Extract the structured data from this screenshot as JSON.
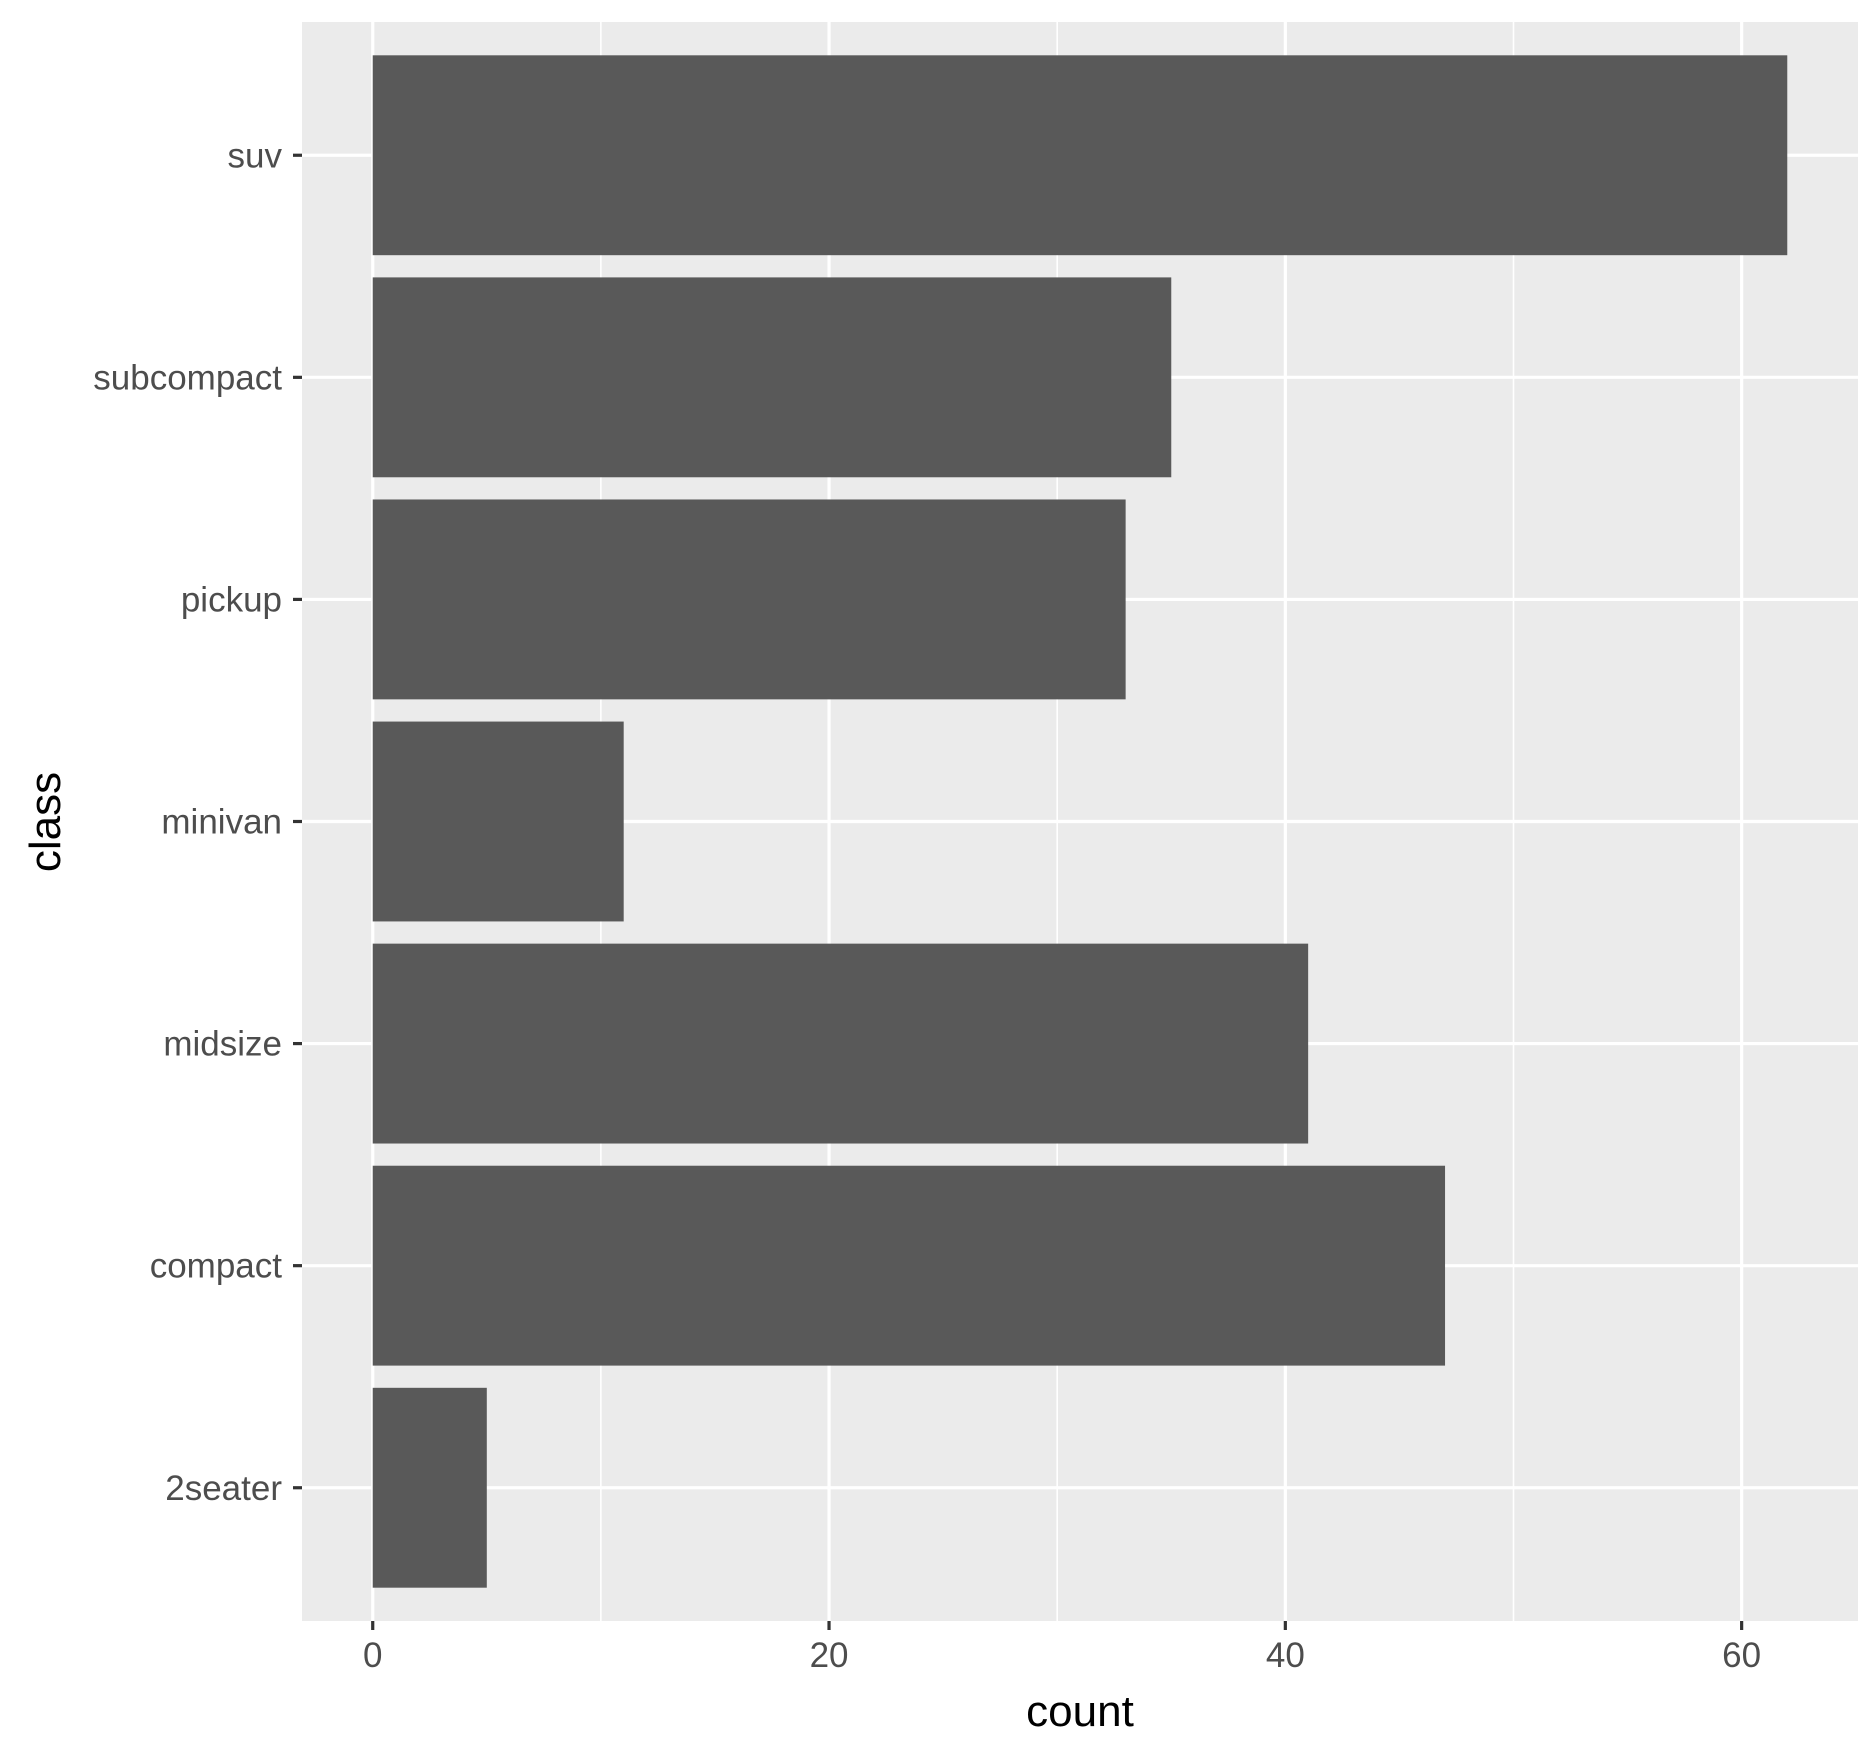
{
  "chart_data": {
    "type": "bar",
    "orientation": "horizontal",
    "categories": [
      "2seater",
      "compact",
      "midsize",
      "minivan",
      "pickup",
      "subcompact",
      "suv"
    ],
    "values": [
      5,
      47,
      41,
      11,
      33,
      35,
      62
    ],
    "xlabel": "count",
    "ylabel": "class",
    "xlim": [
      -3.1,
      65.1
    ],
    "xticks": [
      0,
      20,
      40,
      60
    ],
    "xtick_labels": [
      "0",
      "20",
      "40",
      "60"
    ],
    "grid": true,
    "legend": "none",
    "colors": {
      "bar": "#595959",
      "panel": "#ebebeb",
      "gridline": "#ffffff"
    }
  }
}
